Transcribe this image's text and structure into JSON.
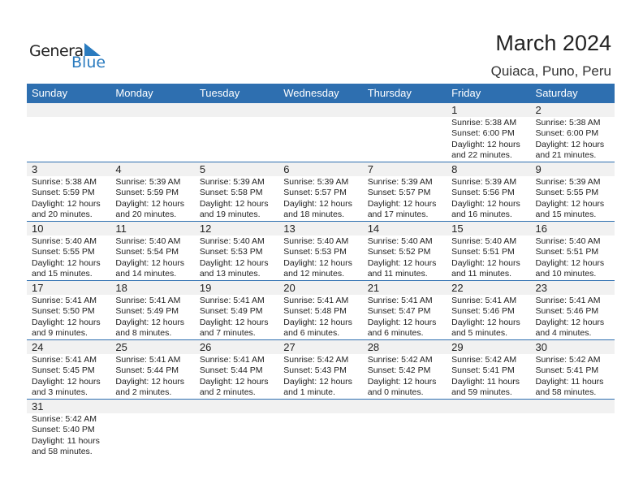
{
  "logo": {
    "general": "General",
    "blue": "Blue"
  },
  "header": {
    "title": "March 2024",
    "location": "Quiaca, Puno, Peru"
  },
  "days": [
    "Sunday",
    "Monday",
    "Tuesday",
    "Wednesday",
    "Thursday",
    "Friday",
    "Saturday"
  ],
  "colors": {
    "header": "#2e6fb0",
    "band": "#f1f1f1"
  },
  "weeks": [
    [
      null,
      null,
      null,
      null,
      null,
      {
        "day": "1",
        "sunrise": "Sunrise: 5:38 AM",
        "sunset": "Sunset: 6:00 PM",
        "daylight": "Daylight: 12 hours",
        "minutes": "and 22 minutes."
      },
      {
        "day": "2",
        "sunrise": "Sunrise: 5:38 AM",
        "sunset": "Sunset: 6:00 PM",
        "daylight": "Daylight: 12 hours",
        "minutes": "and 21 minutes."
      }
    ],
    [
      {
        "day": "3",
        "sunrise": "Sunrise: 5:38 AM",
        "sunset": "Sunset: 5:59 PM",
        "daylight": "Daylight: 12 hours",
        "minutes": "and 20 minutes."
      },
      {
        "day": "4",
        "sunrise": "Sunrise: 5:39 AM",
        "sunset": "Sunset: 5:59 PM",
        "daylight": "Daylight: 12 hours",
        "minutes": "and 20 minutes."
      },
      {
        "day": "5",
        "sunrise": "Sunrise: 5:39 AM",
        "sunset": "Sunset: 5:58 PM",
        "daylight": "Daylight: 12 hours",
        "minutes": "and 19 minutes."
      },
      {
        "day": "6",
        "sunrise": "Sunrise: 5:39 AM",
        "sunset": "Sunset: 5:57 PM",
        "daylight": "Daylight: 12 hours",
        "minutes": "and 18 minutes."
      },
      {
        "day": "7",
        "sunrise": "Sunrise: 5:39 AM",
        "sunset": "Sunset: 5:57 PM",
        "daylight": "Daylight: 12 hours",
        "minutes": "and 17 minutes."
      },
      {
        "day": "8",
        "sunrise": "Sunrise: 5:39 AM",
        "sunset": "Sunset: 5:56 PM",
        "daylight": "Daylight: 12 hours",
        "minutes": "and 16 minutes."
      },
      {
        "day": "9",
        "sunrise": "Sunrise: 5:39 AM",
        "sunset": "Sunset: 5:55 PM",
        "daylight": "Daylight: 12 hours",
        "minutes": "and 15 minutes."
      }
    ],
    [
      {
        "day": "10",
        "sunrise": "Sunrise: 5:40 AM",
        "sunset": "Sunset: 5:55 PM",
        "daylight": "Daylight: 12 hours",
        "minutes": "and 15 minutes."
      },
      {
        "day": "11",
        "sunrise": "Sunrise: 5:40 AM",
        "sunset": "Sunset: 5:54 PM",
        "daylight": "Daylight: 12 hours",
        "minutes": "and 14 minutes."
      },
      {
        "day": "12",
        "sunrise": "Sunrise: 5:40 AM",
        "sunset": "Sunset: 5:53 PM",
        "daylight": "Daylight: 12 hours",
        "minutes": "and 13 minutes."
      },
      {
        "day": "13",
        "sunrise": "Sunrise: 5:40 AM",
        "sunset": "Sunset: 5:53 PM",
        "daylight": "Daylight: 12 hours",
        "minutes": "and 12 minutes."
      },
      {
        "day": "14",
        "sunrise": "Sunrise: 5:40 AM",
        "sunset": "Sunset: 5:52 PM",
        "daylight": "Daylight: 12 hours",
        "minutes": "and 11 minutes."
      },
      {
        "day": "15",
        "sunrise": "Sunrise: 5:40 AM",
        "sunset": "Sunset: 5:51 PM",
        "daylight": "Daylight: 12 hours",
        "minutes": "and 11 minutes."
      },
      {
        "day": "16",
        "sunrise": "Sunrise: 5:40 AM",
        "sunset": "Sunset: 5:51 PM",
        "daylight": "Daylight: 12 hours",
        "minutes": "and 10 minutes."
      }
    ],
    [
      {
        "day": "17",
        "sunrise": "Sunrise: 5:41 AM",
        "sunset": "Sunset: 5:50 PM",
        "daylight": "Daylight: 12 hours",
        "minutes": "and 9 minutes."
      },
      {
        "day": "18",
        "sunrise": "Sunrise: 5:41 AM",
        "sunset": "Sunset: 5:49 PM",
        "daylight": "Daylight: 12 hours",
        "minutes": "and 8 minutes."
      },
      {
        "day": "19",
        "sunrise": "Sunrise: 5:41 AM",
        "sunset": "Sunset: 5:49 PM",
        "daylight": "Daylight: 12 hours",
        "minutes": "and 7 minutes."
      },
      {
        "day": "20",
        "sunrise": "Sunrise: 5:41 AM",
        "sunset": "Sunset: 5:48 PM",
        "daylight": "Daylight: 12 hours",
        "minutes": "and 6 minutes."
      },
      {
        "day": "21",
        "sunrise": "Sunrise: 5:41 AM",
        "sunset": "Sunset: 5:47 PM",
        "daylight": "Daylight: 12 hours",
        "minutes": "and 6 minutes."
      },
      {
        "day": "22",
        "sunrise": "Sunrise: 5:41 AM",
        "sunset": "Sunset: 5:46 PM",
        "daylight": "Daylight: 12 hours",
        "minutes": "and 5 minutes."
      },
      {
        "day": "23",
        "sunrise": "Sunrise: 5:41 AM",
        "sunset": "Sunset: 5:46 PM",
        "daylight": "Daylight: 12 hours",
        "minutes": "and 4 minutes."
      }
    ],
    [
      {
        "day": "24",
        "sunrise": "Sunrise: 5:41 AM",
        "sunset": "Sunset: 5:45 PM",
        "daylight": "Daylight: 12 hours",
        "minutes": "and 3 minutes."
      },
      {
        "day": "25",
        "sunrise": "Sunrise: 5:41 AM",
        "sunset": "Sunset: 5:44 PM",
        "daylight": "Daylight: 12 hours",
        "minutes": "and 2 minutes."
      },
      {
        "day": "26",
        "sunrise": "Sunrise: 5:41 AM",
        "sunset": "Sunset: 5:44 PM",
        "daylight": "Daylight: 12 hours",
        "minutes": "and 2 minutes."
      },
      {
        "day": "27",
        "sunrise": "Sunrise: 5:42 AM",
        "sunset": "Sunset: 5:43 PM",
        "daylight": "Daylight: 12 hours",
        "minutes": "and 1 minute."
      },
      {
        "day": "28",
        "sunrise": "Sunrise: 5:42 AM",
        "sunset": "Sunset: 5:42 PM",
        "daylight": "Daylight: 12 hours",
        "minutes": "and 0 minutes."
      },
      {
        "day": "29",
        "sunrise": "Sunrise: 5:42 AM",
        "sunset": "Sunset: 5:41 PM",
        "daylight": "Daylight: 11 hours",
        "minutes": "and 59 minutes."
      },
      {
        "day": "30",
        "sunrise": "Sunrise: 5:42 AM",
        "sunset": "Sunset: 5:41 PM",
        "daylight": "Daylight: 11 hours",
        "minutes": "and 58 minutes."
      }
    ],
    [
      {
        "day": "31",
        "sunrise": "Sunrise: 5:42 AM",
        "sunset": "Sunset: 5:40 PM",
        "daylight": "Daylight: 11 hours",
        "minutes": "and 58 minutes."
      },
      null,
      null,
      null,
      null,
      null,
      null
    ]
  ]
}
